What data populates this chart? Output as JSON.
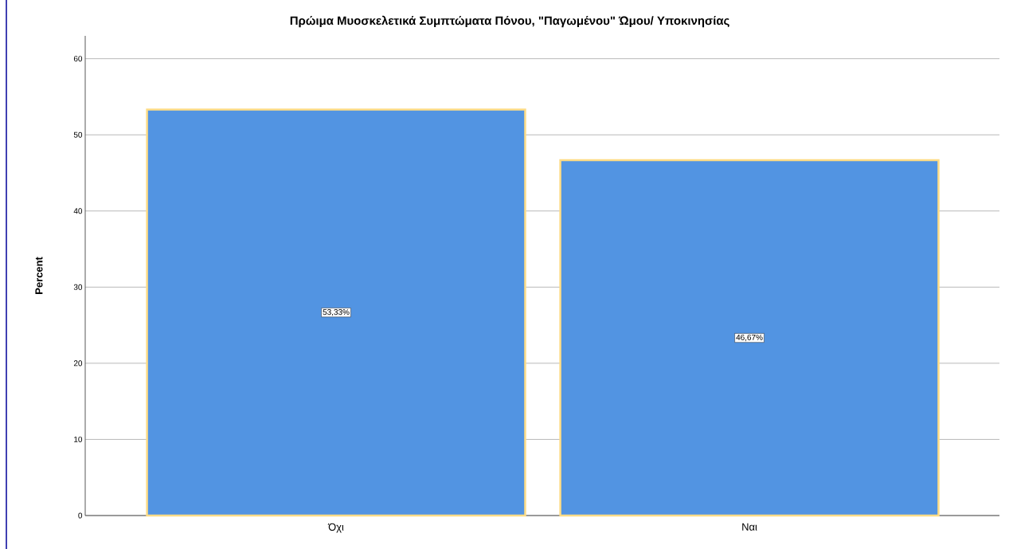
{
  "chart_data": {
    "type": "bar",
    "title": "Πρώιμα Μυοσκελετικά Συμπτώματα Πόνου, \"Παγωμένου\" Ώμου/ Υποκινησίας",
    "ylabel": "Percent",
    "categories": [
      "Όχι",
      "Ναι"
    ],
    "values": [
      53.33,
      46.67
    ],
    "value_labels": [
      "53,33%",
      "46,67%"
    ],
    "color": "#5294e2",
    "ylim": [
      0,
      63
    ],
    "yticks": [
      0,
      10,
      20,
      30,
      40,
      50,
      60
    ],
    "grid": "y"
  }
}
